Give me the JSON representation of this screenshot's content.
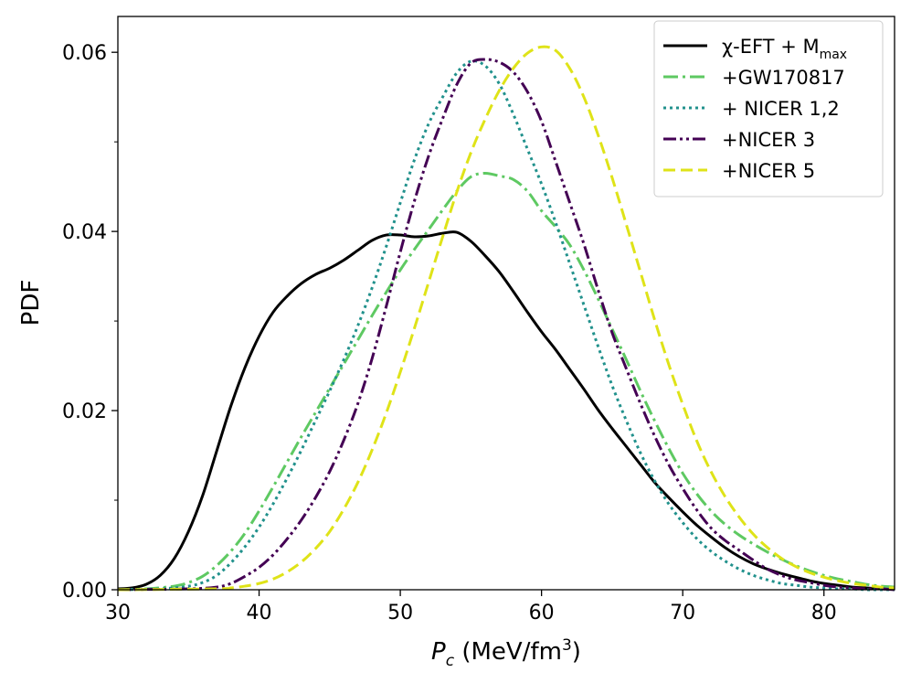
{
  "chart_data": {
    "type": "line",
    "title": "",
    "xlabel": {
      "var": "P",
      "sub": "c",
      "units_prefix": " (MeV/fm",
      "units_sup": "3",
      "units_suffix": ")"
    },
    "ylabel": "PDF",
    "xlim": [
      30,
      85
    ],
    "ylim": [
      0,
      0.064
    ],
    "xticks": [
      30,
      40,
      50,
      60,
      70,
      80
    ],
    "xtick_labels": [
      "30",
      "40",
      "50",
      "60",
      "70",
      "80"
    ],
    "yticks": [
      0.0,
      0.02,
      0.04,
      0.06
    ],
    "ytick_labels": [
      "0.00",
      "0.02",
      "0.04",
      "0.06"
    ],
    "yminor_ticks": [
      0.01,
      0.03,
      0.05
    ],
    "legend_position": "top-right",
    "series": [
      {
        "key": "eft",
        "name": "χ-EFT + M",
        "name_sub": "max",
        "color": "#000000",
        "style": "solid",
        "x": [
          30,
          31,
          32,
          33,
          34,
          35,
          36,
          37,
          38,
          39,
          40,
          41,
          42,
          43,
          44,
          45,
          46,
          47,
          48,
          49,
          50,
          51,
          52,
          53,
          54,
          55,
          56,
          57,
          58,
          59,
          60,
          61,
          62,
          63,
          64,
          65,
          66,
          67,
          68,
          69,
          70,
          71,
          72,
          73,
          74,
          75,
          76,
          77,
          78,
          79,
          80,
          81,
          82,
          83,
          84,
          85
        ],
        "y": [
          0.0001,
          0.0002,
          0.0006,
          0.0016,
          0.0035,
          0.0065,
          0.0105,
          0.0155,
          0.0205,
          0.0248,
          0.0283,
          0.031,
          0.0328,
          0.0342,
          0.0352,
          0.0359,
          0.0368,
          0.0379,
          0.039,
          0.0396,
          0.0396,
          0.0394,
          0.0395,
          0.0398,
          0.0399,
          0.0389,
          0.0373,
          0.0355,
          0.0333,
          0.031,
          0.0288,
          0.0268,
          0.0246,
          0.0224,
          0.0201,
          0.018,
          0.016,
          0.014,
          0.012,
          0.0103,
          0.0087,
          0.0072,
          0.0059,
          0.0047,
          0.0037,
          0.0029,
          0.0023,
          0.0018,
          0.0014,
          0.001,
          0.0007,
          0.0005,
          0.0003,
          0.0002,
          0.0001,
          0.0001
        ]
      },
      {
        "key": "gw",
        "name": "+GW170817",
        "color": "#5ec962",
        "style": "dashdot",
        "x": [
          30,
          32,
          34,
          35,
          36,
          37,
          38,
          39,
          40,
          41,
          42,
          43,
          44,
          45,
          46,
          47,
          48,
          49,
          50,
          51,
          52,
          53,
          54,
          55,
          56,
          57,
          58,
          59,
          60,
          61,
          62,
          63,
          64,
          65,
          66,
          67,
          68,
          69,
          70,
          71,
          72,
          73,
          74,
          75,
          76,
          77,
          78,
          79,
          80,
          81,
          82,
          83,
          84,
          85
        ],
        "y": [
          0.0,
          0.0001,
          0.0004,
          0.0008,
          0.0015,
          0.0027,
          0.0043,
          0.0063,
          0.0088,
          0.0115,
          0.0143,
          0.0171,
          0.0198,
          0.0225,
          0.0252,
          0.0279,
          0.0306,
          0.0332,
          0.0357,
          0.038,
          0.0402,
          0.0424,
          0.0445,
          0.0461,
          0.0465,
          0.0462,
          0.0458,
          0.0445,
          0.0423,
          0.0405,
          0.0385,
          0.0357,
          0.0325,
          0.0291,
          0.0257,
          0.0222,
          0.0189,
          0.0158,
          0.013,
          0.0107,
          0.0088,
          0.0073,
          0.0061,
          0.0051,
          0.0042,
          0.0034,
          0.0027,
          0.0021,
          0.0016,
          0.0012,
          0.0009,
          0.0006,
          0.0004,
          0.0003
        ]
      },
      {
        "key": "nicer12",
        "name": "+ NICER 1,2",
        "color": "#21918c",
        "style": "dotted",
        "x": [
          30,
          33,
          35,
          36,
          37,
          38,
          39,
          40,
          41,
          42,
          43,
          44,
          45,
          46,
          47,
          48,
          49,
          50,
          51,
          52,
          53,
          54,
          55,
          56,
          57,
          58,
          59,
          60,
          61,
          62,
          63,
          64,
          65,
          66,
          67,
          68,
          69,
          70,
          71,
          72,
          73,
          74,
          75,
          76,
          77,
          78,
          79,
          80,
          81,
          82,
          83,
          84,
          85
        ],
        "y": [
          0.0,
          0.0001,
          0.0004,
          0.0008,
          0.0016,
          0.003,
          0.0048,
          0.007,
          0.0096,
          0.0125,
          0.0156,
          0.0189,
          0.0222,
          0.0257,
          0.0295,
          0.0337,
          0.0383,
          0.0432,
          0.048,
          0.052,
          0.055,
          0.0577,
          0.059,
          0.0585,
          0.0565,
          0.0531,
          0.0492,
          0.0453,
          0.041,
          0.0364,
          0.0318,
          0.0272,
          0.0228,
          0.0189,
          0.0153,
          0.0122,
          0.0096,
          0.0075,
          0.0057,
          0.0043,
          0.0032,
          0.0023,
          0.0016,
          0.0011,
          0.0007,
          0.0005,
          0.0003,
          0.0002,
          0.0001,
          0.0001,
          0.0,
          0.0,
          0.0
        ]
      },
      {
        "key": "nicer3",
        "name": "+NICER 3",
        "color": "#440154",
        "style": "dashdotdot",
        "x": [
          30,
          35,
          37,
          38,
          39,
          40,
          41,
          42,
          43,
          44,
          45,
          46,
          47,
          48,
          49,
          50,
          51,
          52,
          53,
          54,
          55,
          56,
          57,
          58,
          59,
          60,
          61,
          62,
          63,
          64,
          65,
          66,
          67,
          68,
          69,
          70,
          71,
          72,
          73,
          74,
          75,
          76,
          77,
          78,
          79,
          80,
          81,
          82,
          83,
          84,
          85
        ],
        "y": [
          0.0,
          0.0001,
          0.0003,
          0.0007,
          0.0015,
          0.0025,
          0.0039,
          0.0057,
          0.0078,
          0.0103,
          0.0132,
          0.0167,
          0.0208,
          0.0258,
          0.0316,
          0.0377,
          0.0434,
          0.0484,
          0.0526,
          0.0564,
          0.0588,
          0.0592,
          0.0589,
          0.0578,
          0.0556,
          0.0523,
          0.0478,
          0.0432,
          0.0386,
          0.0335,
          0.0287,
          0.0247,
          0.0208,
          0.0172,
          0.014,
          0.0113,
          0.0089,
          0.0069,
          0.0055,
          0.0044,
          0.0033,
          0.0023,
          0.0016,
          0.0011,
          0.0008,
          0.0005,
          0.0003,
          0.0002,
          0.0001,
          0.0001,
          0.0
        ]
      },
      {
        "key": "nicer5",
        "name": "+NICER 5",
        "color": "#dfe318",
        "style": "dashed",
        "x": [
          30,
          37,
          38,
          39,
          40,
          41,
          42,
          43,
          44,
          45,
          46,
          47,
          48,
          49,
          50,
          51,
          52,
          53,
          54,
          55,
          56,
          57,
          58,
          59,
          60,
          61,
          62,
          63,
          64,
          65,
          66,
          67,
          68,
          69,
          70,
          71,
          72,
          73,
          74,
          75,
          76,
          77,
          78,
          79,
          80,
          81,
          82,
          83,
          84,
          85
        ],
        "y": [
          0.0,
          0.0001,
          0.0002,
          0.0004,
          0.0007,
          0.0012,
          0.002,
          0.0031,
          0.0046,
          0.0065,
          0.009,
          0.012,
          0.0156,
          0.0197,
          0.0243,
          0.0292,
          0.0343,
          0.0394,
          0.0444,
          0.0488,
          0.0525,
          0.0557,
          0.0582,
          0.0599,
          0.0606,
          0.0602,
          0.0582,
          0.055,
          0.0508,
          0.046,
          0.0408,
          0.0355,
          0.0302,
          0.0252,
          0.0207,
          0.0166,
          0.0132,
          0.0104,
          0.0081,
          0.0062,
          0.0047,
          0.0035,
          0.0026,
          0.0019,
          0.0014,
          0.001,
          0.0007,
          0.0005,
          0.0003,
          0.0002
        ]
      }
    ]
  }
}
